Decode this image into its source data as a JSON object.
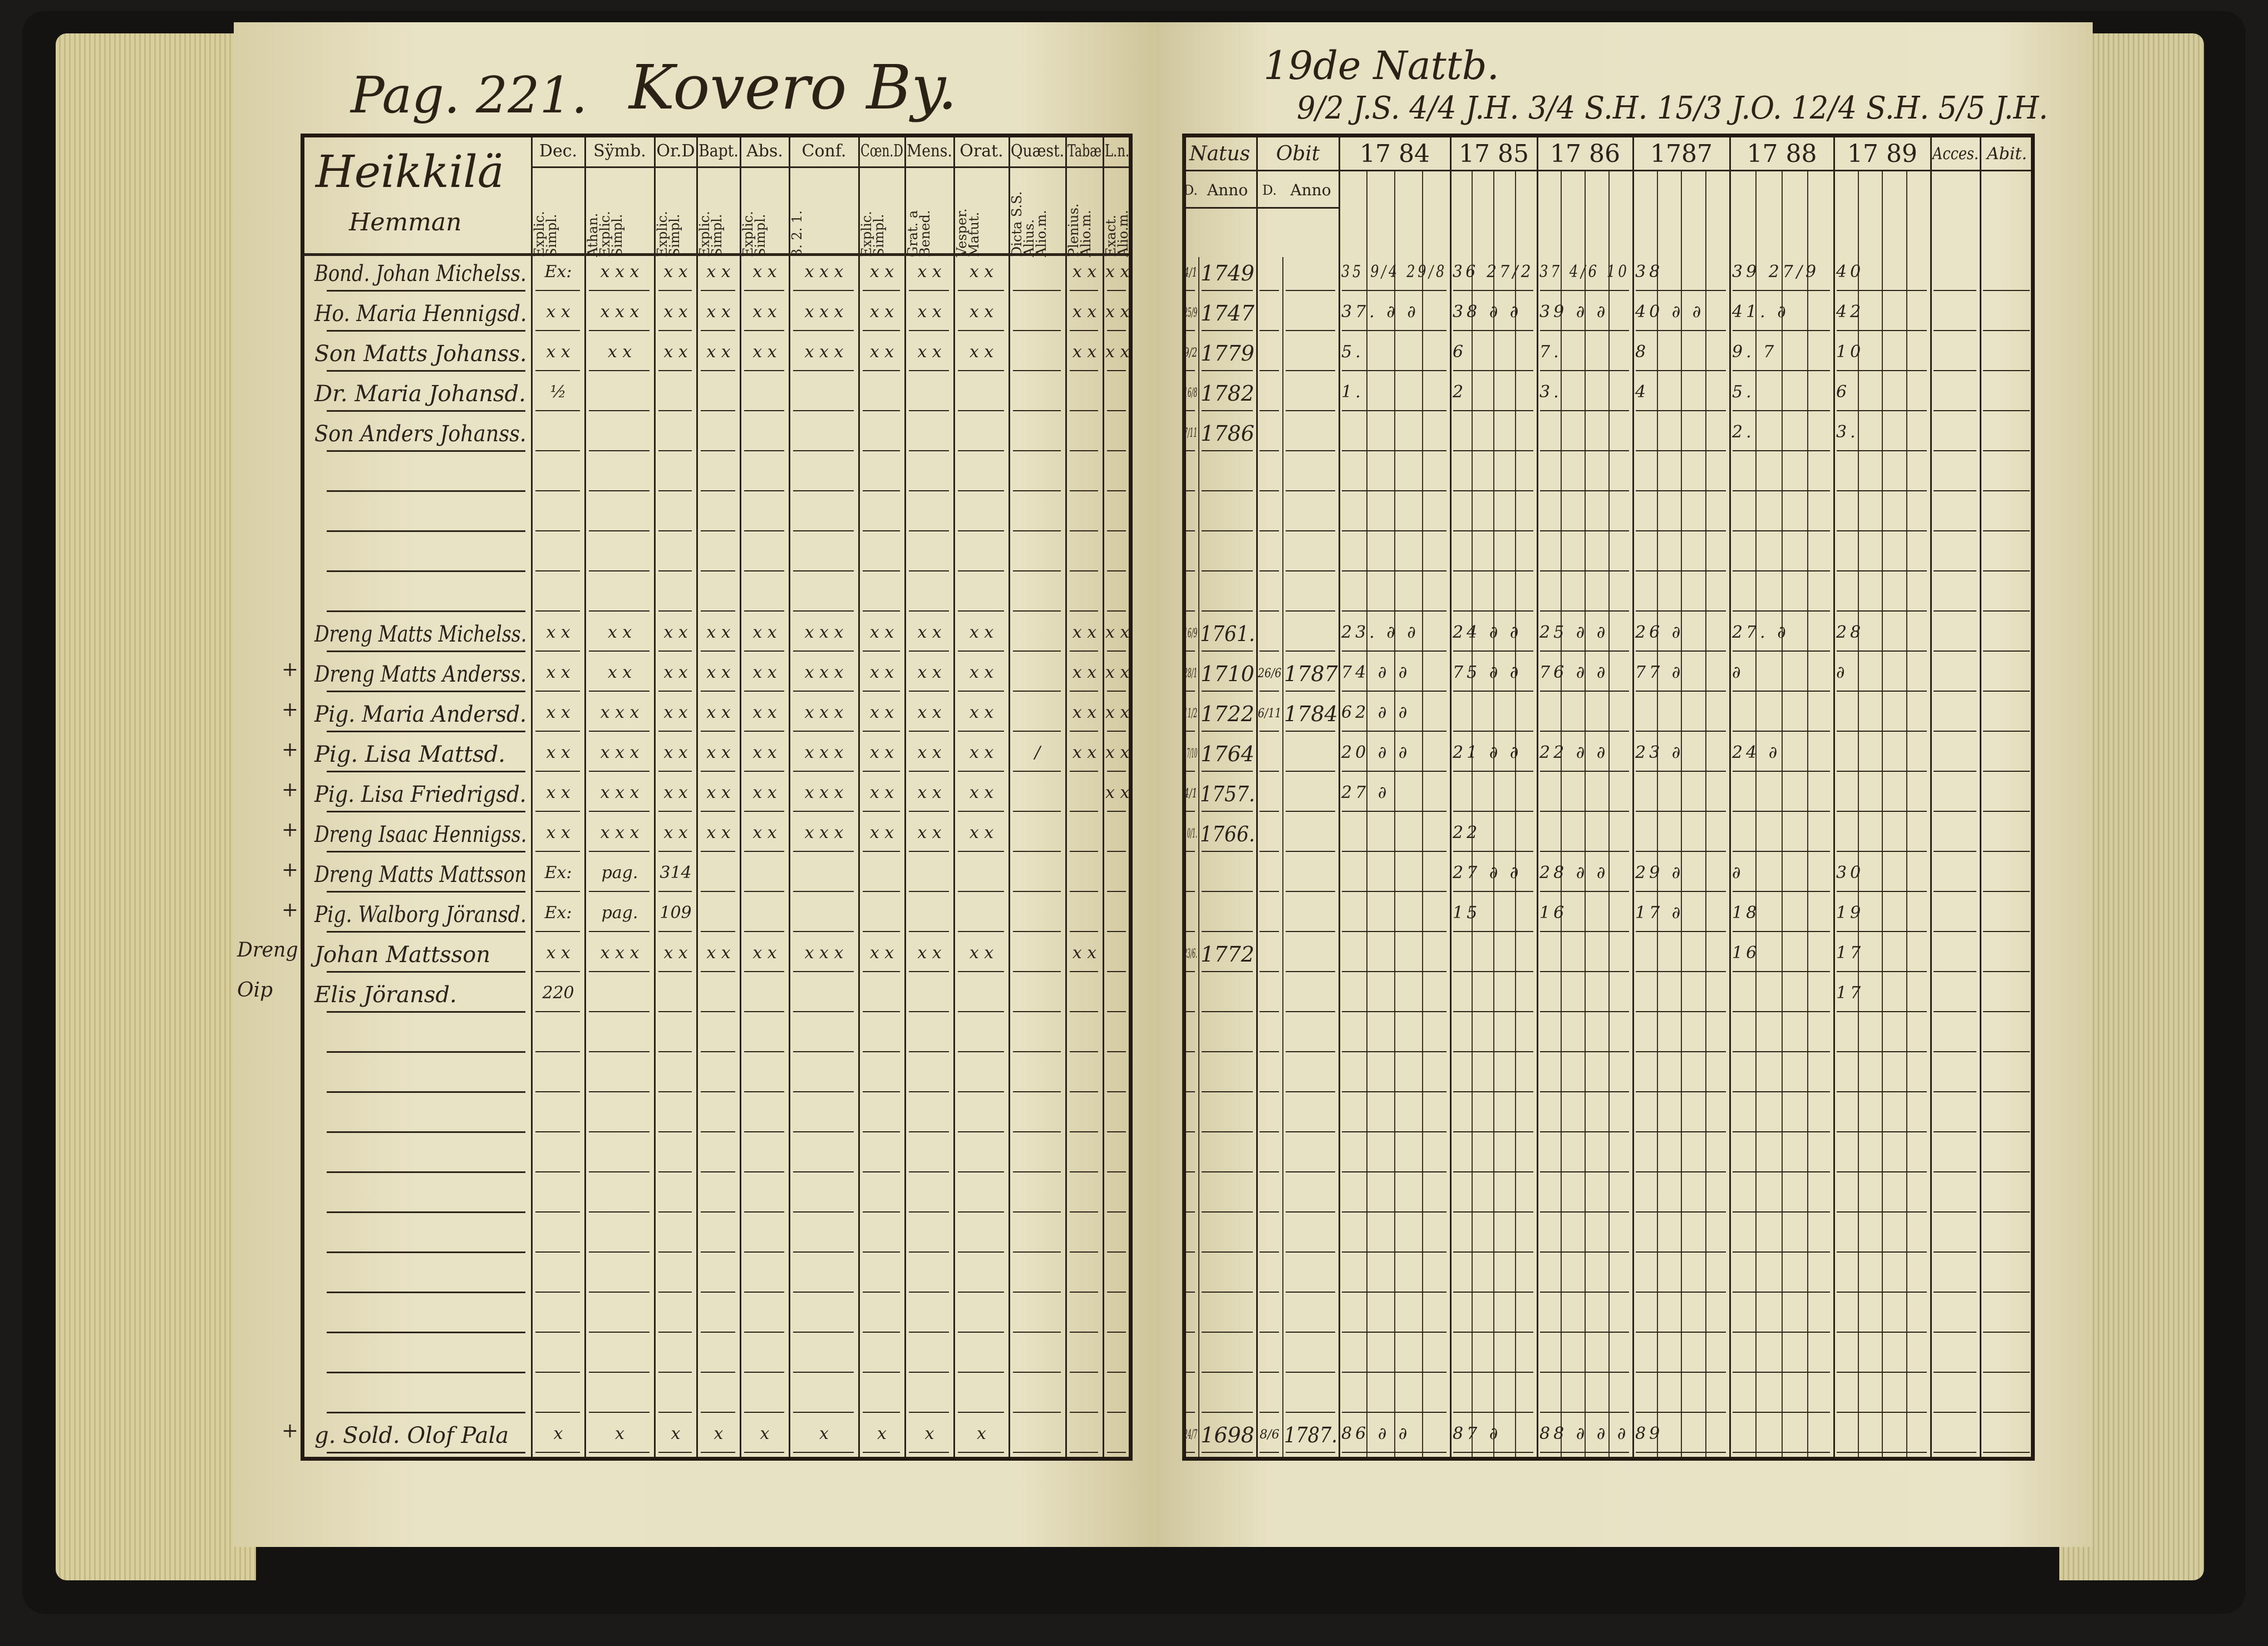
{
  "left_page": {
    "page_number": "Pag. 221.",
    "village": "Kovero By.",
    "farm": "Heikkilä",
    "farm_type": "Hemman",
    "columns": [
      {
        "label": "Dec.",
        "sub": "Explic. Simpl."
      },
      {
        "label": "Sÿmb.",
        "sub": "Athan. Explic. Simpl."
      },
      {
        "label": "Or.D",
        "sub": "Explic. Simpl."
      },
      {
        "label": "Bapt.",
        "sub": "Explic. Simpl."
      },
      {
        "label": "Abs.",
        "sub": "Explic. Simpl."
      },
      {
        "label": "Conf.",
        "sub": "3. 2. 1."
      },
      {
        "label": "Cœn.D",
        "sub": "Explic. Simpl."
      },
      {
        "label": "Mens.",
        "sub": "Grat. a Bened."
      },
      {
        "label": "Orat.",
        "sub": "Vesper. Matut."
      },
      {
        "label": "Quæst.",
        "sub": "Dicta S.S. Alius. Alio.m."
      },
      {
        "label": "Tabæ",
        "sub": "Plenius. Alio.m."
      },
      {
        "label": "L.n.",
        "sub": "Exact. Alio.m."
      }
    ],
    "rows": [
      {
        "margin": "",
        "name": "Bond. Johan Michelss.",
        "marks": [
          "Ex:",
          "x x x",
          "x x",
          "x x",
          "x x",
          "x x x",
          "x x",
          "x x",
          "x x",
          "",
          "x x",
          "x x"
        ]
      },
      {
        "margin": "",
        "name": "Ho. Maria Hennigsd.",
        "marks": [
          "x x",
          "x x x",
          "x x",
          "x x",
          "x x",
          "x x x",
          "x x",
          "x x",
          "x x",
          "",
          "x x",
          "x x"
        ]
      },
      {
        "margin": "",
        "name": "Son Matts Johanss.",
        "marks": [
          "x x",
          "x x",
          "x x",
          "x x",
          "x x",
          "x x x",
          "x x",
          "x x",
          "x x",
          "",
          "x x",
          "x x"
        ]
      },
      {
        "margin": "",
        "name": "Dr. Maria Johansd.",
        "marks": [
          "½",
          "",
          "",
          "",
          "",
          "",
          "",
          "",
          "",
          "",
          "",
          ""
        ]
      },
      {
        "margin": "",
        "name": "Son Anders Johanss.",
        "marks": [
          "",
          "",
          "",
          "",
          "",
          "",
          "",
          "",
          "",
          "",
          "",
          ""
        ]
      },
      {
        "margin": "",
        "name": "",
        "marks": []
      },
      {
        "margin": "",
        "name": "",
        "marks": []
      },
      {
        "margin": "",
        "name": "",
        "marks": []
      },
      {
        "margin": "",
        "name": "",
        "marks": []
      },
      {
        "margin": "",
        "name": "Dreng Matts Michelss.",
        "marks": [
          "x x",
          "x x",
          "x x",
          "x x",
          "x x",
          "x x x",
          "x x",
          "x x",
          "x x",
          "",
          "x x",
          "x x"
        ]
      },
      {
        "margin": "+",
        "name": "Dreng Matts Anderss.",
        "marks": [
          "x x",
          "x x",
          "x x",
          "x x",
          "x x",
          "x x x",
          "x x",
          "x x",
          "x x",
          "",
          "x x",
          "x x"
        ]
      },
      {
        "margin": "+",
        "name": "Pig. Maria Andersd.",
        "marks": [
          "x x",
          "x x x",
          "x x",
          "x x",
          "x x",
          "x x x",
          "x x",
          "x x",
          "x x",
          "",
          "x x",
          "x x"
        ]
      },
      {
        "margin": "+",
        "name": "Pig. Lisa Mattsd.",
        "marks": [
          "x x",
          "x x x",
          "x x",
          "x x",
          "x x",
          "x x x",
          "x x",
          "x x",
          "x x",
          "/",
          "x x",
          "x x"
        ]
      },
      {
        "margin": "+",
        "name": "Pig. Lisa Friedrigsd.",
        "marks": [
          "x x",
          "x x x",
          "x x",
          "x x",
          "x x",
          "x x x",
          "x x",
          "x x",
          "x x",
          "",
          "",
          "x x"
        ]
      },
      {
        "margin": "+",
        "name": "Dreng Isaac Hennigss.",
        "marks": [
          "x x",
          "x x x",
          "x x",
          "x x",
          "x x",
          "x x x",
          "x x",
          "x x",
          "x x",
          "",
          "",
          ""
        ]
      },
      {
        "margin": "+",
        "name": "Dreng Matts Mattsson",
        "marks": [
          "Ex:",
          "pag.",
          "314",
          "",
          "",
          "",
          "",
          "",
          "",
          "",
          "",
          ""
        ]
      },
      {
        "margin": "+",
        "name": "Pig. Walborg Jöransd.",
        "marks": [
          "Ex:",
          "pag.",
          "109",
          "",
          "",
          "",
          "",
          "",
          "",
          "",
          "",
          ""
        ]
      },
      {
        "margin": "Dreng",
        "name": "Johan Mattsson",
        "marks": [
          "x x",
          "x x x",
          "x x",
          "x x",
          "x x",
          "x x x",
          "x x",
          "x x",
          "x x",
          "",
          "x x",
          ""
        ]
      },
      {
        "margin": "Oip",
        "name": "Elis Jöransd.",
        "marks": [
          "220",
          "",
          "",
          "",
          "",
          "",
          "",
          "",
          "",
          "",
          "",
          ""
        ]
      },
      {
        "margin": "",
        "name": "",
        "marks": []
      },
      {
        "margin": "",
        "name": "",
        "marks": []
      },
      {
        "margin": "",
        "name": "",
        "marks": []
      },
      {
        "margin": "",
        "name": "",
        "marks": []
      },
      {
        "margin": "",
        "name": "",
        "marks": []
      },
      {
        "margin": "",
        "name": "",
        "marks": []
      },
      {
        "margin": "",
        "name": "",
        "marks": []
      },
      {
        "margin": "",
        "name": "",
        "marks": []
      },
      {
        "margin": "",
        "name": "",
        "marks": []
      },
      {
        "margin": "",
        "name": "",
        "marks": []
      },
      {
        "margin": "+",
        "name": "g. Sold. Olof Pala",
        "marks": [
          "x",
          "x",
          "x",
          "x",
          "x",
          "x",
          "x",
          "x",
          "x",
          "",
          "",
          ""
        ]
      }
    ]
  },
  "right_page": {
    "heading": "19de Nattb.",
    "communion_dates": "9/2 J.S.  4/4 J.H.  3/4 S.H.  15/3 J.O.  12/4 S.H.  5/5 J.H.",
    "columns": {
      "natus": "Natus",
      "obit": "Obit",
      "d": "D.",
      "anno": "Anno",
      "years": [
        "17 84",
        "17 85",
        "17 86",
        "1787",
        "17 88",
        "17 89"
      ],
      "accessit": "Acces.",
      "abit": "Abit."
    },
    "rows": [
      {
        "nd": "4/1",
        "na": "1749",
        "od": "",
        "oa": "",
        "y": [
          "35 9/4 29/8",
          "36 27/2",
          "37 4/6 10",
          "38",
          "39 27/9",
          "40"
        ]
      },
      {
        "nd": "25/9",
        "na": "1747",
        "od": "",
        "oa": "",
        "y": [
          "37. ∂ ∂",
          "38 ∂ ∂",
          "39 ∂ ∂",
          "40 ∂ ∂",
          "41. ∂",
          "42"
        ]
      },
      {
        "nd": "9/2",
        "na": "1779",
        "od": "",
        "oa": "",
        "y": [
          "5.",
          "6",
          "7.",
          "8",
          "9. 7",
          "10"
        ]
      },
      {
        "nd": "16/8",
        "na": "1782",
        "od": "",
        "oa": "",
        "y": [
          "1.",
          "2",
          "3.",
          "4",
          "5.",
          "6"
        ]
      },
      {
        "nd": "7/11",
        "na": "1786",
        "od": "",
        "oa": "",
        "y": [
          "",
          "",
          "",
          "",
          "2.",
          "3."
        ]
      },
      {},
      {},
      {},
      {},
      {
        "nd": "16/9",
        "na": "1761.",
        "od": "",
        "oa": "",
        "y": [
          "23. ∂ ∂",
          "24 ∂ ∂",
          "25 ∂ ∂",
          "26 ∂",
          "27. ∂",
          "28"
        ]
      },
      {
        "nd": "28/1",
        "na": "1710",
        "od": "26/6",
        "oa": "1787",
        "y": [
          "74 ∂ ∂",
          "75 ∂ ∂",
          "76 ∂ ∂",
          "77 ∂",
          "∂",
          "∂"
        ]
      },
      {
        "nd": "11/2",
        "na": "1722",
        "od": "6/11",
        "oa": "1784",
        "y": [
          "62 ∂ ∂",
          "",
          "",
          "",
          "",
          ""
        ]
      },
      {
        "nd": "17/10",
        "na": "1764",
        "od": "",
        "oa": "",
        "y": [
          "20 ∂ ∂",
          "21 ∂ ∂",
          "22 ∂ ∂",
          "23 ∂",
          "24 ∂",
          ""
        ]
      },
      {
        "nd": "4/1",
        "na": "1757.",
        "od": "",
        "oa": "",
        "y": [
          "27 ∂",
          "",
          "",
          "",
          "",
          ""
        ]
      },
      {
        "nd": "10/1.",
        "na": "1766.",
        "od": "",
        "oa": "",
        "y": [
          "",
          "22",
          "",
          "",
          "",
          ""
        ]
      },
      {
        "nd": "",
        "na": "",
        "od": "",
        "oa": "",
        "y": [
          "",
          "27 ∂ ∂",
          "28 ∂ ∂",
          "29 ∂",
          "∂",
          "30"
        ]
      },
      {
        "nd": "",
        "na": "",
        "od": "",
        "oa": "",
        "y": [
          "",
          "15",
          "16",
          "17 ∂",
          "18",
          "19"
        ]
      },
      {
        "nd": "23/6.",
        "na": "1772",
        "od": "",
        "oa": "",
        "y": [
          "",
          "",
          "",
          "",
          "16",
          "17"
        ]
      },
      {
        "nd": "",
        "na": "",
        "od": "",
        "oa": "",
        "y": [
          "",
          "",
          "",
          "",
          "",
          "17"
        ]
      },
      {},
      {},
      {},
      {},
      {},
      {},
      {},
      {},
      {},
      {},
      {
        "nd": "24/7",
        "na": "1698",
        "od": "8/6",
        "oa": "1787.",
        "y": [
          "86 ∂ ∂",
          "87 ∂",
          "88 ∂ ∂ ∂",
          "89",
          "",
          ""
        ]
      }
    ]
  },
  "colors": {
    "paper": "#e8e2c4",
    "ink": "#2b2115",
    "cover": "#141312"
  }
}
